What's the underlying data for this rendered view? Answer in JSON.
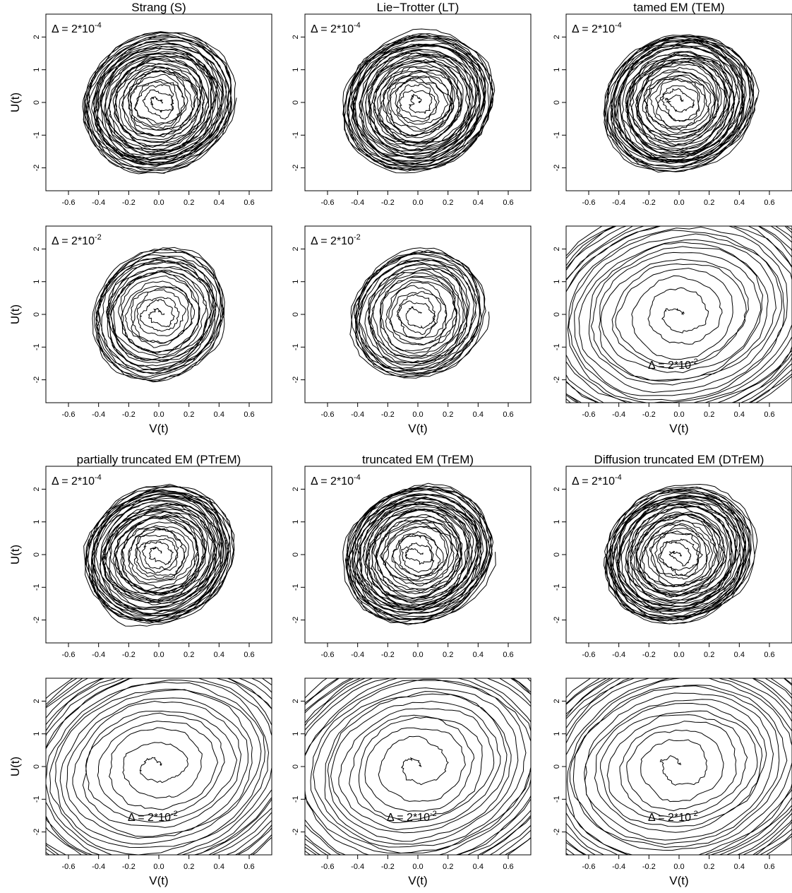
{
  "figure": {
    "caption": ""
  },
  "shared_axes": {
    "xlabel": "V(t)",
    "ylabel": "U(t)",
    "x_ticks": [
      "-0.6",
      "-0.4",
      "-0.2",
      "0.0",
      "0.2",
      "0.4",
      "0.6"
    ],
    "y_ticks": [
      "-2",
      "-1",
      "0",
      "1",
      "2"
    ]
  },
  "chart_data": [
    {
      "type": "line",
      "title": "Strang (S)",
      "delta_label": "2*10",
      "delta_exp": "-4",
      "xlim": [
        -0.75,
        0.75
      ],
      "ylim": [
        -2.7,
        2.7
      ],
      "xlabel": "",
      "ylabel": "U(t)",
      "description_of_series": "single noisy phase-plane trajectory spiralling around origin",
      "series": [
        {
          "amplitude_V": 0.5,
          "amplitude_U": 2.1,
          "loops": 40
        }
      ]
    },
    {
      "type": "line",
      "title": "Lie−Trotter (LT)",
      "delta_label": "2*10",
      "delta_exp": "-4",
      "xlim": [
        -0.75,
        0.75
      ],
      "ylim": [
        -2.7,
        2.7
      ],
      "xlabel": "",
      "ylabel": "",
      "series": [
        {
          "amplitude_V": 0.5,
          "amplitude_U": 2.1,
          "loops": 40
        }
      ]
    },
    {
      "type": "line",
      "title": "tamed EM (TEM)",
      "delta_label": "2*10",
      "delta_exp": "-4",
      "xlim": [
        -0.75,
        0.75
      ],
      "ylim": [
        -2.7,
        2.7
      ],
      "xlabel": "",
      "ylabel": "",
      "series": [
        {
          "amplitude_V": 0.5,
          "amplitude_U": 2.1,
          "loops": 40
        }
      ]
    },
    {
      "type": "line",
      "title": "",
      "delta_label": "2*10",
      "delta_exp": "-2",
      "xlim": [
        -0.75,
        0.75
      ],
      "ylim": [
        -2.7,
        2.7
      ],
      "xlabel": "V(t)",
      "ylabel": "U(t)",
      "series": [
        {
          "amplitude_V": 0.45,
          "amplitude_U": 2.0,
          "loops": 25
        }
      ]
    },
    {
      "type": "line",
      "title": "",
      "delta_label": "2*10",
      "delta_exp": "-2",
      "xlim": [
        -0.75,
        0.75
      ],
      "ylim": [
        -2.7,
        2.7
      ],
      "xlabel": "V(t)",
      "ylabel": "",
      "series": [
        {
          "amplitude_V": 0.45,
          "amplitude_U": 2.0,
          "loops": 25
        }
      ]
    },
    {
      "type": "line",
      "title": "",
      "delta_label": "2*10",
      "delta_exp": "-2",
      "xlim": [
        -0.75,
        0.75
      ],
      "ylim": [
        -2.7,
        2.7
      ],
      "xlabel": "V(t)",
      "ylabel": "",
      "series": [
        {
          "amplitude_V": 1.0,
          "amplitude_U": 3.5,
          "loops": 22
        }
      ]
    },
    {
      "type": "line",
      "title": "partially truncated EM (PTrEM)",
      "delta_label": "2*10",
      "delta_exp": "-4",
      "xlim": [
        -0.75,
        0.75
      ],
      "ylim": [
        -2.7,
        2.7
      ],
      "xlabel": "",
      "ylabel": "U(t)",
      "series": [
        {
          "amplitude_V": 0.5,
          "amplitude_U": 2.1,
          "loops": 40
        }
      ]
    },
    {
      "type": "line",
      "title": "truncated EM (TrEM)",
      "delta_label": "2*10",
      "delta_exp": "-4",
      "xlim": [
        -0.75,
        0.75
      ],
      "ylim": [
        -2.7,
        2.7
      ],
      "xlabel": "",
      "ylabel": "",
      "series": [
        {
          "amplitude_V": 0.5,
          "amplitude_U": 2.1,
          "loops": 40
        }
      ]
    },
    {
      "type": "line",
      "title": "Diffusion truncated EM (DTrEM)",
      "delta_label": "2*10",
      "delta_exp": "-4",
      "xlim": [
        -0.75,
        0.75
      ],
      "ylim": [
        -2.7,
        2.7
      ],
      "xlabel": "",
      "ylabel": "",
      "series": [
        {
          "amplitude_V": 0.5,
          "amplitude_U": 2.1,
          "loops": 40
        }
      ]
    },
    {
      "type": "line",
      "title": "",
      "delta_label": "2*10",
      "delta_exp": "-2",
      "xlim": [
        -0.75,
        0.75
      ],
      "ylim": [
        -2.7,
        2.7
      ],
      "xlabel": "V(t)",
      "ylabel": "U(t)",
      "series": [
        {
          "amplitude_V": 1.05,
          "amplitude_U": 3.7,
          "loops": 22
        }
      ]
    },
    {
      "type": "line",
      "title": "",
      "delta_label": "2*10",
      "delta_exp": "-2",
      "xlim": [
        -0.75,
        0.75
      ],
      "ylim": [
        -2.7,
        2.7
      ],
      "xlabel": "V(t)",
      "ylabel": "",
      "series": [
        {
          "amplitude_V": 1.05,
          "amplitude_U": 3.7,
          "loops": 22
        }
      ]
    },
    {
      "type": "line",
      "title": "",
      "delta_label": "2*10",
      "delta_exp": "-2",
      "xlim": [
        -0.75,
        0.75
      ],
      "ylim": [
        -2.7,
        2.7
      ],
      "xlabel": "V(t)",
      "ylabel": "",
      "series": [
        {
          "amplitude_V": 1.05,
          "amplitude_U": 3.7,
          "loops": 22
        }
      ]
    }
  ]
}
